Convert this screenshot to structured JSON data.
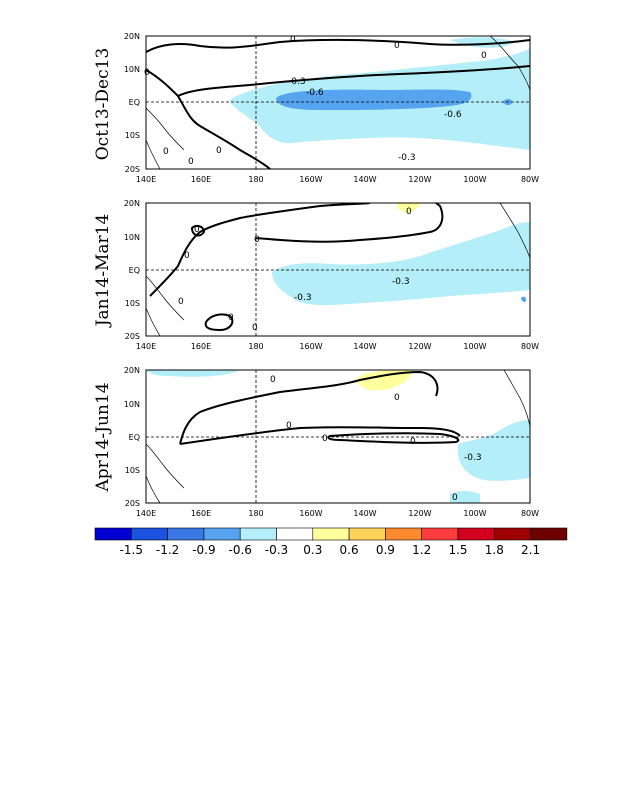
{
  "panels": [
    {
      "label": "Oct13-Dec13"
    },
    {
      "label": "Jan14-Mar14"
    },
    {
      "label": "Apr14-Jun14"
    }
  ],
  "axes": {
    "lat_ticks": [
      "20N",
      "10N",
      "EQ",
      "10S",
      "20S"
    ],
    "lon_ticks": [
      "140E",
      "160E",
      "180",
      "160W",
      "140W",
      "120W",
      "100W",
      "80W"
    ]
  },
  "contour_labels": {
    "p1": [
      "-0.3",
      "-0.6",
      "-0.6",
      "-0.3"
    ],
    "p1_zero": [
      "0",
      "0",
      "0",
      "0",
      "0",
      "0",
      "0"
    ],
    "p2": [
      "-0.3",
      "-0.3"
    ],
    "p2_zero": [
      "0",
      "0",
      "0",
      "0",
      "0",
      "0",
      "0"
    ],
    "p3": [
      "-0.3"
    ],
    "p3_zero": [
      "0",
      "0",
      "0",
      "0",
      "0",
      "0"
    ]
  },
  "colorbar": {
    "ticks": [
      "-1.5",
      "-1.2",
      "-0.9",
      "-0.6",
      "-0.3",
      "0.3",
      "0.6",
      "0.9",
      "1.2",
      "1.5",
      "1.8",
      "2.1"
    ],
    "colors": [
      "#0000d2",
      "#1c52e0",
      "#3a78e6",
      "#56a4f0",
      "#b4eef8",
      "#ffffff",
      "#ffff9e",
      "#ffd25a",
      "#ff8a2e",
      "#ff3c3c",
      "#d2001e",
      "#a00000",
      "#6e0000"
    ]
  },
  "colors": {
    "neg_light": "#b4eef8",
    "neg_mid": "#56a4f0",
    "neg_dark": "#3a78e6",
    "pos_light": "#ffff9e"
  }
}
